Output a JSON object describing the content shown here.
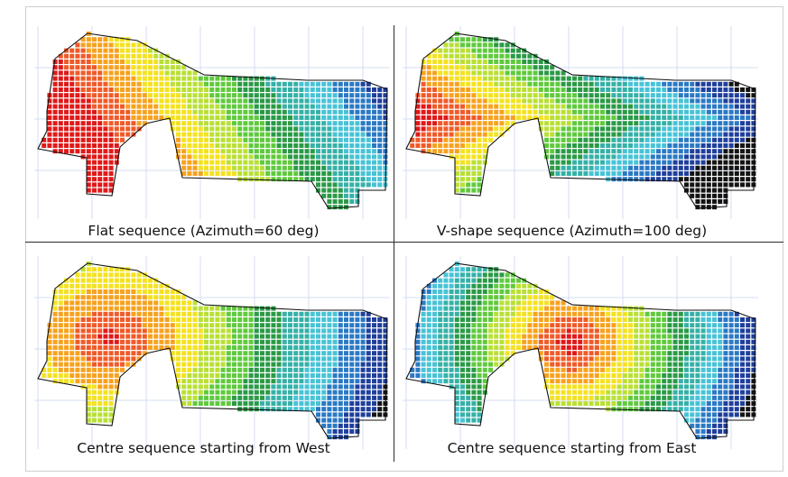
{
  "figure": {
    "panels": [
      {
        "caption": "Flat sequence (Azimuth=60 deg)",
        "pattern": "flat"
      },
      {
        "caption": "V-shape sequence (Azimuth=100 deg)",
        "pattern": "vshape"
      },
      {
        "caption": "Centre sequence starting from West",
        "pattern": "centre-west"
      },
      {
        "caption": "Centre sequence starting from East",
        "pattern": "centre-east"
      }
    ],
    "colors": {
      "colormap": [
        "#e01919",
        "#f05a28",
        "#f7a21d",
        "#f4e21f",
        "#b9e033",
        "#5fca3c",
        "#2a9a46",
        "#35b1a7",
        "#47c3d6",
        "#2a79c4",
        "#1f3f9c",
        "#141414"
      ],
      "outline": "#111111",
      "grid": "#c9d4ee",
      "divider": "#2b2b2b"
    }
  }
}
